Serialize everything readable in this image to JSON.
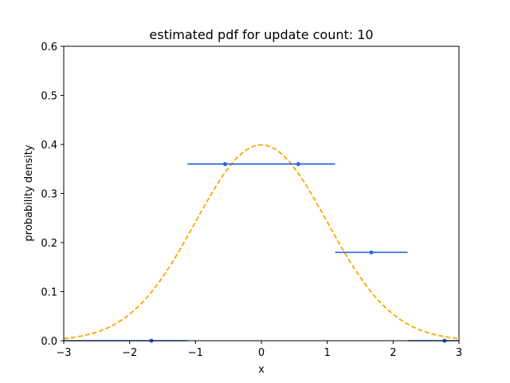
{
  "chart_data": {
    "type": "line",
    "title": "estimated pdf for update count: 10",
    "xlabel": "x",
    "ylabel": "probability density",
    "xlim": [
      -3,
      3
    ],
    "ylim": [
      0,
      0.6
    ],
    "xticks": [
      -3,
      -2,
      -1,
      0,
      1,
      2,
      3
    ],
    "xtick_labels": [
      "−3",
      "−2",
      "−1",
      "0",
      "1",
      "2",
      "3"
    ],
    "yticks": [
      0.0,
      0.1,
      0.2,
      0.3,
      0.4,
      0.5,
      0.6
    ],
    "ytick_labels": [
      "0.0",
      "0.1",
      "0.2",
      "0.3",
      "0.4",
      "0.5",
      "0.6"
    ],
    "grid": false,
    "series": [
      {
        "kind": "dashed-curve",
        "description": "standard normal density",
        "color": "#ffa500",
        "mean": 0,
        "std": 1
      },
      {
        "kind": "horizontal-segments",
        "color": "#3366dd",
        "segments": [
          {
            "x0": -3.0,
            "x1": -1.12,
            "y": 0.0,
            "center": -1.67
          },
          {
            "x0": -1.12,
            "x1": 1.12,
            "y": 0.36,
            "center": -0.55
          },
          {
            "x0": -1.12,
            "x1": 1.12,
            "y": 0.36,
            "center": 0.56
          },
          {
            "x0": 1.12,
            "x1": 2.22,
            "y": 0.18,
            "center": 1.67
          },
          {
            "x0": 2.22,
            "x1": 3.0,
            "y": 0.0,
            "center": 2.78
          }
        ]
      }
    ]
  }
}
